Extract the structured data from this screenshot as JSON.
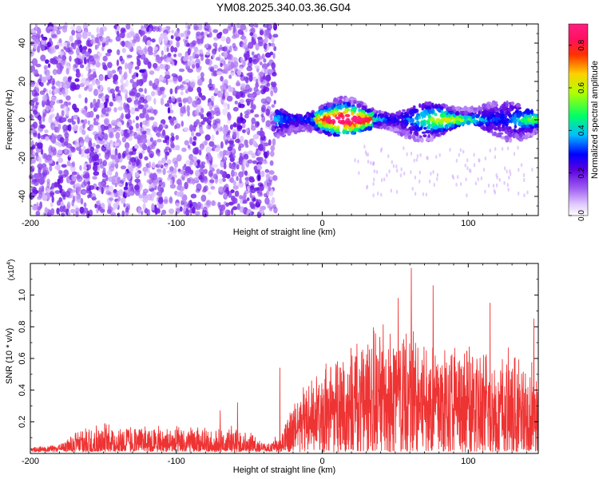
{
  "title": "YM08.2025.340.03.36.G04",
  "chart_data": [
    {
      "type": "heatmap",
      "xlabel": "Height of straight line (km)",
      "ylabel": "Frequency (Hz)",
      "xlim": [
        -200,
        148
      ],
      "ylim": [
        -50,
        50
      ],
      "xticks": [
        -200,
        -100,
        0,
        100
      ],
      "yticks": [
        -40,
        -20,
        0,
        20,
        40
      ],
      "colorbar": {
        "label": "Normalized spectral amplitude",
        "range": [
          0,
          0.9
        ],
        "ticks": [
          "0.0",
          "0.2",
          "0.4",
          "0.6",
          "0.8"
        ],
        "colormap": "rainbow (white-violet-blue-cyan-green-yellow-red-magenta)"
      },
      "features": [
        {
          "x_range": [
            -200,
            -32
          ],
          "description": "scattered low-amplitude (~0.1-0.2) speckle across full frequency band"
        },
        {
          "x_range": [
            -32,
            148
          ],
          "description": "narrow band centred near 0 Hz, amplitude peaks ~0.7-0.8 between 0 and 30 km"
        }
      ]
    },
    {
      "type": "line",
      "xlabel": "Height of straight line (km)",
      "ylabel": "SNR (10 * v/v)",
      "y_multiplier": "(x10",
      "y_multiplier_exp": "4",
      "y_multiplier_close": ")",
      "xlim": [
        -200,
        148
      ],
      "ylim": [
        0,
        1.2
      ],
      "xticks": [
        -200,
        -100,
        0,
        100
      ],
      "yticks": [
        "0.2",
        "0.4",
        "0.6",
        "0.8",
        "1.0"
      ],
      "series_color": "#ee3333",
      "envelope": {
        "x": [
          -200,
          -180,
          -172,
          -165,
          -160,
          -150,
          -140,
          -130,
          -120,
          -110,
          -100,
          -90,
          -80,
          -70,
          -60,
          -50,
          -40,
          -35,
          -32,
          -28,
          -25,
          -20,
          -10,
          0,
          10,
          20,
          30,
          40,
          50,
          60,
          70,
          80,
          90,
          100,
          110,
          120,
          130,
          140,
          148
        ],
        "base": [
          0.02,
          0.03,
          0.05,
          0.06,
          0.06,
          0.07,
          0.07,
          0.07,
          0.06,
          0.06,
          0.06,
          0.06,
          0.05,
          0.05,
          0.05,
          0.04,
          0.03,
          0.03,
          0.06,
          0.05,
          0.08,
          0.14,
          0.2,
          0.24,
          0.28,
          0.3,
          0.32,
          0.33,
          0.33,
          0.33,
          0.32,
          0.31,
          0.3,
          0.28,
          0.27,
          0.26,
          0.24,
          0.22,
          0.2
        ],
        "amp": [
          0.02,
          0.03,
          0.09,
          0.12,
          0.13,
          0.14,
          0.13,
          0.13,
          0.12,
          0.12,
          0.12,
          0.12,
          0.13,
          0.12,
          0.14,
          0.11,
          0.04,
          0.04,
          0.07,
          0.1,
          0.16,
          0.22,
          0.28,
          0.34,
          0.42,
          0.48,
          0.5,
          0.52,
          0.55,
          0.56,
          0.52,
          0.5,
          0.48,
          0.45,
          0.45,
          0.44,
          0.42,
          0.4,
          0.4
        ]
      },
      "peaks": [
        {
          "x": -70,
          "y": 0.27
        },
        {
          "x": -58,
          "y": 0.32
        },
        {
          "x": -29,
          "y": 0.54
        },
        {
          "x": 52,
          "y": 0.98
        },
        {
          "x": 61,
          "y": 1.17
        },
        {
          "x": 76,
          "y": 1.06
        },
        {
          "x": 115,
          "y": 0.95
        },
        {
          "x": 145,
          "y": 0.85
        }
      ]
    }
  ]
}
